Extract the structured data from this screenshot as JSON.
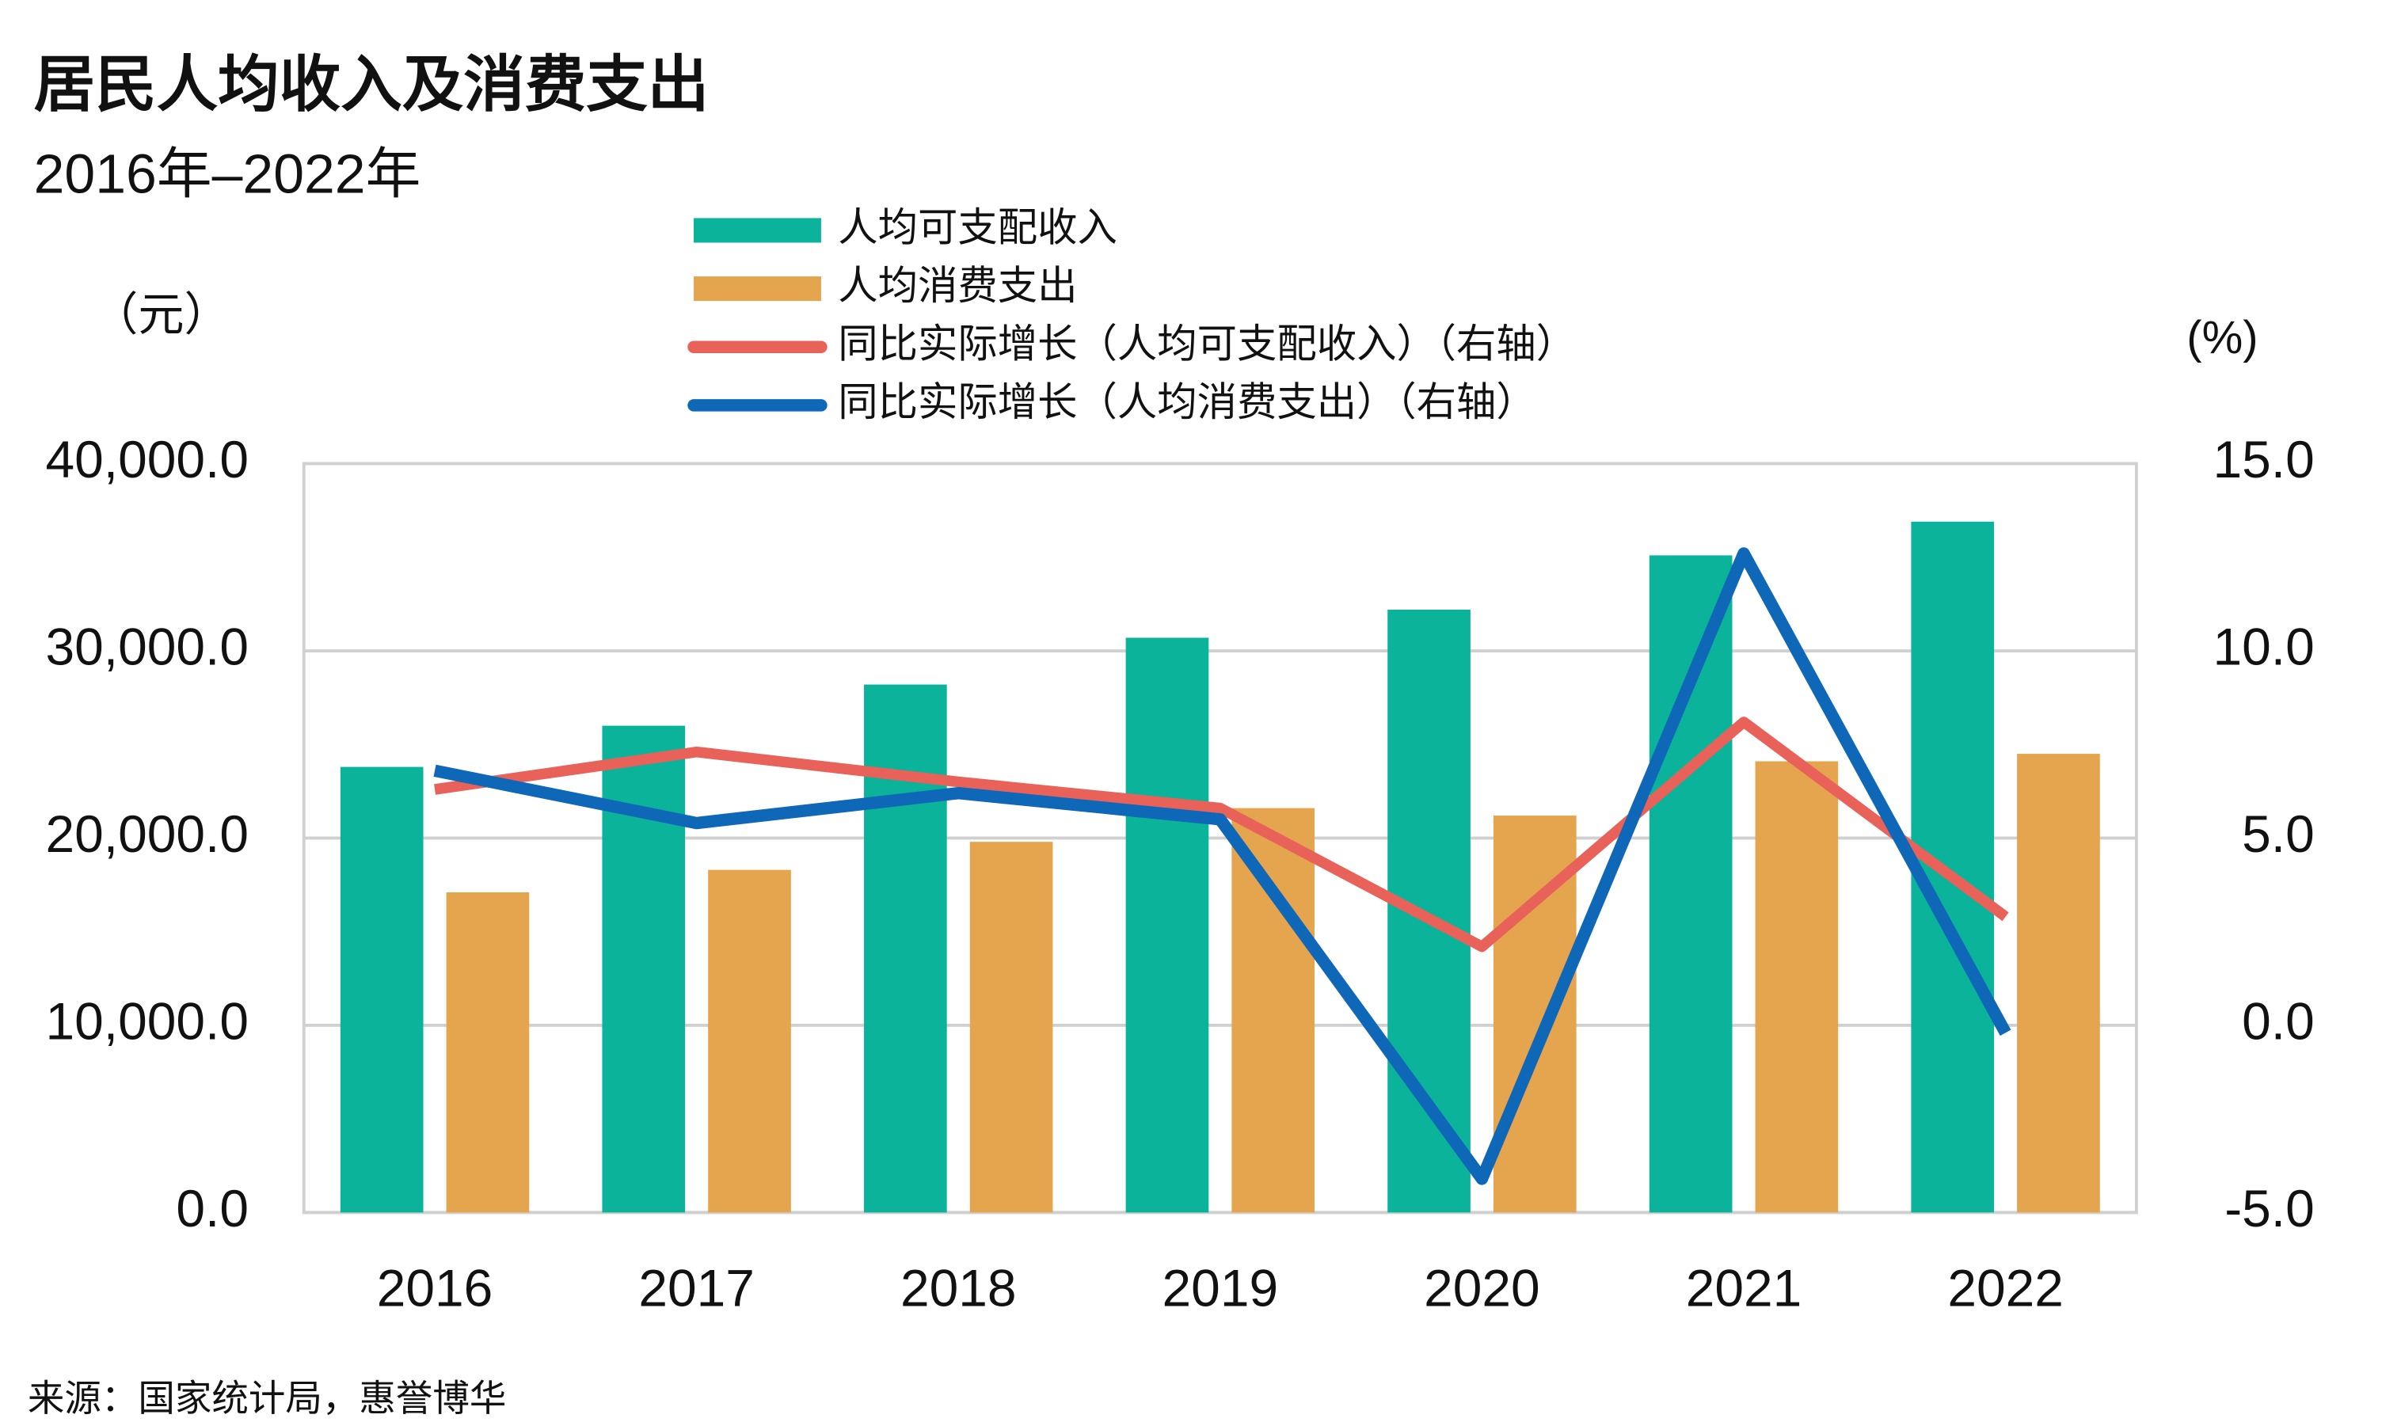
{
  "chart_data": {
    "type": "bar",
    "title": "居民人均收入及消费支出",
    "subtitle": "2016年–2022年",
    "y_label": "（元）",
    "y2_label": "(%)",
    "source": "来源：国家统计局，惠誉博华",
    "categories": [
      "2016",
      "2017",
      "2018",
      "2019",
      "2020",
      "2021",
      "2022"
    ],
    "series": [
      {
        "name": "人均可支配收入",
        "color": "#0bb39a",
        "values": [
          23800,
          26000,
          28200,
          30700,
          32200,
          35100,
          36900
        ]
      },
      {
        "name": "人均消费支出",
        "color": "#e5a44e",
        "values": [
          17100,
          18300,
          19800,
          21600,
          21200,
          24100,
          24500
        ]
      },
      {
        "name": "同比实际增长（人均可支配收入）（右轴）",
        "color": "#e8625a",
        "type": "line",
        "axis": "y2",
        "values": [
          6.3,
          7.3,
          6.5,
          5.8,
          2.1,
          8.1,
          2.9
        ]
      },
      {
        "name": "同比实际增长（人均消费支出）（右轴）",
        "color": "#0f67b8",
        "type": "line",
        "axis": "y2",
        "values": [
          6.8,
          5.4,
          6.2,
          5.5,
          -4.1,
          12.6,
          -0.2
        ]
      }
    ],
    "ylim": [
      0,
      40000
    ],
    "yticks": [
      {
        "value": 0,
        "label": "0.0"
      },
      {
        "value": 10000,
        "label": "10,000.0"
      },
      {
        "value": 20000,
        "label": "20,000.0"
      },
      {
        "value": 30000,
        "label": "30,000.0"
      },
      {
        "value": 40000,
        "label": "40,000.0"
      }
    ],
    "y2lim": [
      -5,
      15
    ],
    "y2ticks": [
      {
        "value": -5,
        "label": "-5.0"
      },
      {
        "value": 0,
        "label": "0.0"
      },
      {
        "value": 5,
        "label": "5.0"
      },
      {
        "value": 10,
        "label": "10.0"
      },
      {
        "value": 15,
        "label": "15.0"
      }
    ],
    "grid": true
  }
}
